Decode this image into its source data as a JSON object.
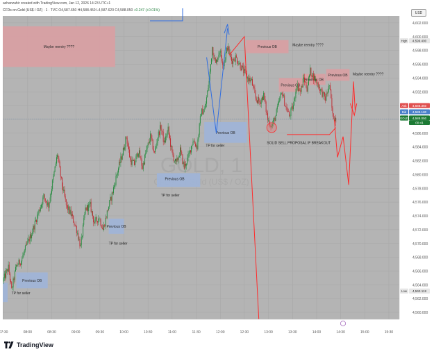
{
  "header": {
    "byline": "azhanzahir created with TradingView.com, Jan 12, 2026 14:23 UTC+1",
    "symbol": "CFDs on Gold (US$ / OZ) · 1 · TVC",
    "ohlc": "O4,587.650 H4,588.450 L4,587.620 C4,588.050",
    "change": "+0.247 (+0.01%)",
    "currency": "USD"
  },
  "footer": {
    "brand": "TradingView"
  },
  "watermark": {
    "symbol": "GOLD, 1",
    "name": "CFDs on Gold (US$ / OZ)"
  },
  "colors": {
    "bg": "#b4b4b4",
    "bull": "#1f8a3a",
    "bear": "#c0272d",
    "red_zone": "#d9a0a3",
    "blue_zone": "#9fb4d8",
    "red_line": "#ff2b2b",
    "blue_line": "#2f6de0",
    "ask": "#e05050",
    "bid": "#4a80c9",
    "price": "#1c7a34"
  },
  "chart_data": {
    "type": "candlestick",
    "symbol": "GOLD",
    "timeframe": "1",
    "ylim": [
      4559,
      4603
    ],
    "y_ticks": [
      4560,
      4562,
      4564,
      4566,
      4568,
      4570,
      4572,
      4574,
      4576,
      4578,
      4580,
      4582,
      4584,
      4586,
      4588,
      4590,
      4592,
      4594,
      4596,
      4598,
      4600,
      4602
    ],
    "x_ticks": [
      "07:30",
      "08:00",
      "08:30",
      "09:00",
      "09:30",
      "10:00",
      "10:30",
      "11:00",
      "11:30",
      "12:00",
      "12:30",
      "13:00",
      "13:30",
      "14:00",
      "14:30",
      "15:00",
      "15:30"
    ],
    "x_tick_minutes": [
      450,
      480,
      510,
      540,
      570,
      600,
      630,
      660,
      690,
      720,
      750,
      780,
      810,
      840,
      870,
      900,
      930
    ],
    "xlim_minutes": [
      449,
      943
    ],
    "price_path": [
      [
        449,
        4564.5
      ],
      [
        456,
        4566.5
      ],
      [
        460,
        4563.2
      ],
      [
        466,
        4566.8
      ],
      [
        472,
        4567.5
      ],
      [
        478,
        4569.5
      ],
      [
        485,
        4571.5
      ],
      [
        492,
        4574.0
      ],
      [
        500,
        4576.8
      ],
      [
        506,
        4575.5
      ],
      [
        512,
        4579.5
      ],
      [
        517,
        4583.0
      ],
      [
        522,
        4579.0
      ],
      [
        528,
        4575.5
      ],
      [
        535,
        4574.0
      ],
      [
        541,
        4572.0
      ],
      [
        546,
        4569.5
      ],
      [
        552,
        4575.0
      ],
      [
        558,
        4575.5
      ],
      [
        563,
        4573.0
      ],
      [
        569,
        4573.8
      ],
      [
        574,
        4572.0
      ],
      [
        580,
        4575.0
      ],
      [
        586,
        4577.5
      ],
      [
        592,
        4580.5
      ],
      [
        598,
        4583.0
      ],
      [
        603,
        4585.5
      ],
      [
        608,
        4582.0
      ],
      [
        613,
        4581.5
      ],
      [
        618,
        4583.5
      ],
      [
        623,
        4581.0
      ],
      [
        628,
        4583.5
      ],
      [
        633,
        4585.5
      ],
      [
        638,
        4583.0
      ],
      [
        642,
        4585.5
      ],
      [
        646,
        4587.0
      ],
      [
        650,
        4584.5
      ],
      [
        655,
        4586.5
      ],
      [
        660,
        4583.0
      ],
      [
        665,
        4581.5
      ],
      [
        670,
        4583.5
      ],
      [
        675,
        4581.0
      ],
      [
        680,
        4582.5
      ],
      [
        686,
        4585.0
      ],
      [
        691,
        4584.0
      ],
      [
        696,
        4589.0
      ],
      [
        701,
        4589.5
      ],
      [
        706,
        4593.5
      ],
      [
        710,
        4598.5
      ],
      [
        714,
        4596.0
      ],
      [
        719,
        4598.0
      ],
      [
        724,
        4596.0
      ],
      [
        729,
        4598.5
      ],
      [
        734,
        4596.5
      ],
      [
        739,
        4597.0
      ],
      [
        744,
        4596.0
      ],
      [
        749,
        4595.0
      ],
      [
        754,
        4594.0
      ],
      [
        759,
        4593.5
      ],
      [
        764,
        4591.0
      ],
      [
        769,
        4590.5
      ],
      [
        774,
        4591.5
      ],
      [
        779,
        4588.0
      ],
      [
        784,
        4587.0
      ],
      [
        789,
        4588.5
      ],
      [
        793,
        4590.5
      ],
      [
        797,
        4592.0
      ],
      [
        801,
        4590.0
      ],
      [
        806,
        4588.5
      ],
      [
        811,
        4590.0
      ],
      [
        815,
        4593.0
      ],
      [
        820,
        4592.0
      ],
      [
        824,
        4594.0
      ],
      [
        828,
        4592.5
      ],
      [
        832,
        4595.0
      ],
      [
        837,
        4594.0
      ],
      [
        842,
        4593.0
      ],
      [
        846,
        4592.0
      ],
      [
        851,
        4591.0
      ],
      [
        856,
        4593.0
      ],
      [
        860,
        4588.5
      ],
      [
        864,
        4588.05
      ]
    ],
    "current": {
      "ask": "4,588.350",
      "bid": "4,588.180",
      "symbol": "GOLD",
      "price": "4,588.050",
      "countdown": "00:41"
    },
    "high": {
      "label": "High",
      "value": "4,599.400"
    },
    "low": {
      "label": "Low",
      "value": "4,563.118"
    },
    "zones": [
      {
        "kind": "red",
        "t1": 449,
        "t2": 589,
        "p1": 4595.6,
        "p2": 4601.5,
        "label": "Maybe reentry ????"
      },
      {
        "kind": "red",
        "t1": 752,
        "t2": 805,
        "p1": 4597.6,
        "p2": 4599.5,
        "label": "Previous OB"
      },
      {
        "kind": "red",
        "t1": 793,
        "t2": 822,
        "p1": 4592.0,
        "p2": 4594.0,
        "label": "Previous OB"
      },
      {
        "kind": "red",
        "t1": 822,
        "t2": 851,
        "p1": 4593.0,
        "p2": 4594.6,
        "label": "Previous OB"
      },
      {
        "kind": "red",
        "t1": 852,
        "t2": 881,
        "p1": 4593.6,
        "p2": 4595.3,
        "label": "Previous OB"
      },
      {
        "kind": "blue",
        "t1": 700,
        "t2": 753,
        "p1": 4584.6,
        "p2": 4587.6,
        "label": "Previous OB"
      },
      {
        "kind": "blue",
        "t1": 641,
        "t2": 695,
        "p1": 4578.2,
        "p2": 4580.2,
        "label": ""
      },
      {
        "kind": "blue",
        "t1": 581,
        "t2": 600,
        "p1": 4571.4,
        "p2": 4573.6,
        "label": "Previous OB"
      },
      {
        "kind": "blue",
        "t1": 466,
        "t2": 505,
        "p1": 4563.5,
        "p2": 4565.8,
        "label": "Previous OB"
      },
      {
        "kind": "blue",
        "t1": 449,
        "t2": 455,
        "p1": 4561.5,
        "p2": 4564.3,
        "label": ""
      }
    ],
    "labels": [
      {
        "t": 810,
        "p": 4598.6,
        "text": "Maybe reentry ????"
      },
      {
        "t": 885,
        "p": 4594.4,
        "text": "Maybe reentry ????"
      },
      {
        "t": 651,
        "p": 4579.2,
        "text": "Previous OB"
      },
      {
        "t": 702,
        "p": 4584.0,
        "text": "TP for seller"
      },
      {
        "t": 646,
        "p": 4576.8,
        "text": "TP for seller"
      },
      {
        "t": 581,
        "p": 4569.8,
        "text": "TP for seller"
      },
      {
        "t": 460,
        "p": 4562.6,
        "text": "TP for seller"
      },
      {
        "t": 778,
        "p": 4584.4,
        "text": "SOLID SELL PROPOSAL IF BREAKOUT"
      }
    ]
  }
}
